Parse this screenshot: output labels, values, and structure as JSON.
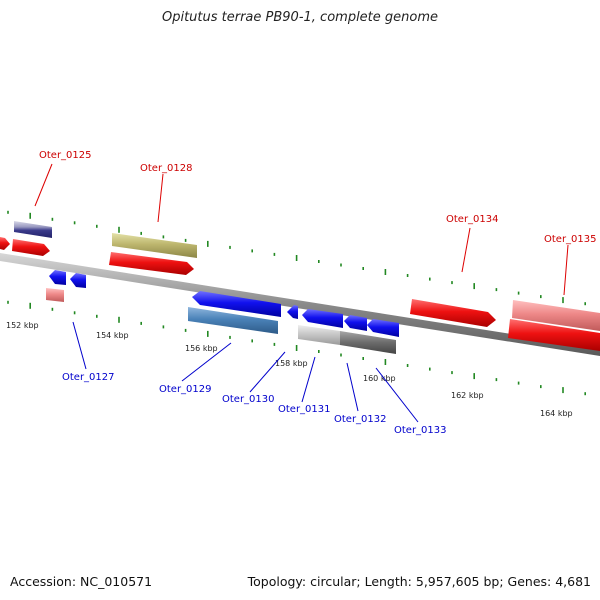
{
  "title": "Opitutus terrae PB90-1, complete genome",
  "footer": {
    "accession": "Accession: NC_010571",
    "summary": "Topology: circular; Length: 5,957,605 bp; Genes: 4,681"
  },
  "colors": {
    "background": "#ffffff",
    "top_label": "#cc0000",
    "bottom_label": "#0000cc",
    "tick": "#228822",
    "axis": "#888888",
    "red_gene": "#ee1111",
    "blue_gene": "#1111ee"
  },
  "scale_labels": [
    "152 kbp",
    "154 kbp",
    "156 kbp",
    "158 kbp",
    "160 kbp",
    "162 kbp",
    "164 kbp"
  ],
  "top_labels": [
    "Oter_0125",
    "Oter_0128",
    "Oter_0134",
    "Oter_0135"
  ],
  "bottom_labels": [
    "Oter_0127",
    "Oter_0129",
    "Oter_0130",
    "Oter_0131",
    "Oter_0132",
    "Oter_0133"
  ]
}
